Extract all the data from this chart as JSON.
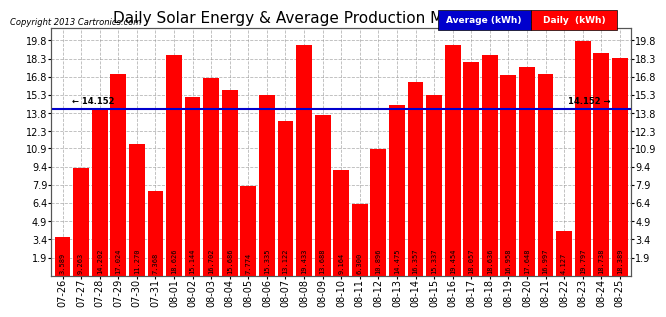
{
  "title": "Daily Solar Energy & Average Production Mon Aug 26 06:26",
  "copyright": "Copyright 2013 Cartronics.com",
  "average_label": "Average (kWh)",
  "daily_label": "Daily  (kWh)",
  "average_value": 14.152,
  "average_label_left": "← 14.152",
  "average_label_right": "14.152 →",
  "categories": [
    "07-26",
    "07-27",
    "07-28",
    "07-29",
    "07-30",
    "07-31",
    "08-01",
    "08-02",
    "08-03",
    "08-04",
    "08-05",
    "08-06",
    "08-07",
    "08-08",
    "08-09",
    "08-10",
    "08-11",
    "08-12",
    "08-13",
    "08-14",
    "08-15",
    "08-16",
    "08-17",
    "08-18",
    "08-19",
    "08-20",
    "08-21",
    "08-22",
    "08-23",
    "08-24",
    "08-25"
  ],
  "values": [
    3.589,
    9.263,
    14.202,
    17.024,
    11.27,
    7.368,
    18.626,
    15.144,
    16.702,
    15.686,
    7.774,
    15.335,
    13.122,
    19.433,
    13.688,
    9.164,
    6.3,
    10.896,
    14.475,
    16.357,
    15.337,
    19.454,
    18.057,
    18.636,
    16.958,
    17.648,
    16.997,
    4.127,
    19.797,
    18.738,
    18.389
  ],
  "bar_color": "#ff0000",
  "avg_line_color": "#0000cd",
  "background_color": "#ffffff",
  "plot_bg_color": "#ffffff",
  "grid_color": "#999999",
  "yticks": [
    1.9,
    3.4,
    4.9,
    6.4,
    7.9,
    9.4,
    10.9,
    12.3,
    13.8,
    15.3,
    16.8,
    18.3,
    19.8
  ],
  "ymin": 0.4,
  "ymax": 20.8,
  "title_fontsize": 11,
  "tick_fontsize": 7,
  "bar_label_fontsize": 5,
  "legend_avg_color": "#0000cd",
  "legend_daily_color": "#ff0000"
}
